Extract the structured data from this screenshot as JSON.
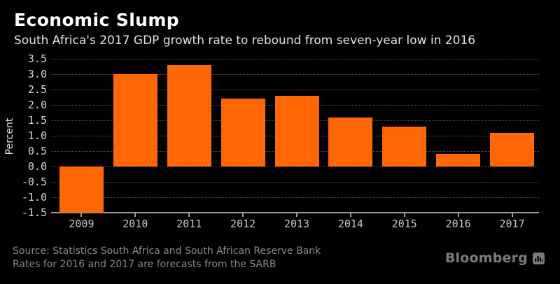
{
  "header": {
    "title": "Economic Slump",
    "subtitle": "South Africa's 2017 GDP growth rate to rebound from seven-year low in 2016"
  },
  "chart_data": {
    "type": "bar",
    "title": "Economic Slump",
    "subtitle": "South Africa's 2017 GDP growth rate to rebound from seven-year low in 2016",
    "categories": [
      "2009",
      "2010",
      "2011",
      "2012",
      "2013",
      "2014",
      "2015",
      "2016",
      "2017"
    ],
    "values": [
      -1.5,
      3.0,
      3.3,
      2.2,
      2.3,
      1.6,
      1.3,
      0.4,
      1.1
    ],
    "xlabel": "",
    "ylabel": "Percent",
    "ylim": [
      -1.5,
      3.5
    ],
    "ytick_step": 0.5,
    "grid": "horizontal-dotted",
    "legend": "none",
    "bar_color": "#ff6606",
    "background_color": "#000000"
  },
  "footer": {
    "source_lines": [
      "Source: Statistics South Africa and South African Reserve Bank",
      "Rates for 2016 and 2017 are forecasts from the SARB"
    ],
    "brand": "Bloomberg"
  },
  "colors": {
    "bar": "#ff6606",
    "background": "#000000",
    "title": "#ffffff",
    "subtitle": "#e4e4e4",
    "tick_labels": "#d6d6d6",
    "gridline": "#525252",
    "axis": "#9a9a9a",
    "source_text": "#8a8a8a",
    "brand_gray": "#7b7b7b"
  }
}
